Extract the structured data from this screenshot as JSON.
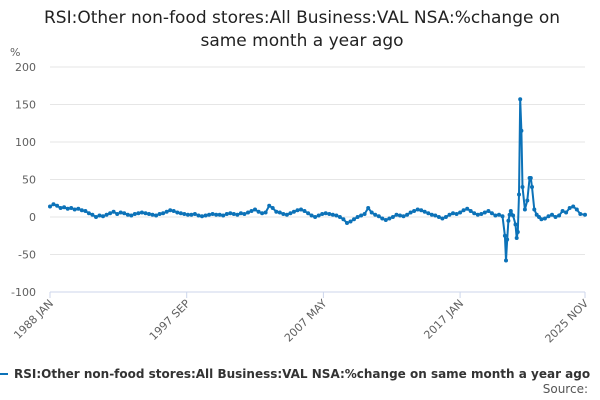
{
  "chart_data": {
    "type": "line",
    "title_lines": [
      "RSI:Other non-food stores:All Business:VAL NSA:%change on",
      "same month a year ago"
    ],
    "ylabel": "%",
    "ylim": [
      -100,
      200
    ],
    "yticks": [
      200,
      150,
      100,
      50,
      0,
      -50,
      -100
    ],
    "xlim": [
      "1988-01",
      "2025-11"
    ],
    "xticks": [
      "1988 JAN",
      "1997 SEP",
      "2007 MAY",
      "2017 JAN",
      "2025 NOV"
    ],
    "grid": true,
    "legend_position": "bottom",
    "source_label": "Source:",
    "accent_color": "#0c72b8",
    "series": [
      {
        "name": "RSI:Other non-food stores:All Business:VAL NSA:%change on same month a year ago",
        "points": [
          [
            "1988-01",
            14
          ],
          [
            "1988-04",
            17
          ],
          [
            "1988-07",
            15
          ],
          [
            "1988-10",
            12
          ],
          [
            "1989-01",
            13
          ],
          [
            "1989-04",
            11
          ],
          [
            "1989-07",
            12
          ],
          [
            "1989-10",
            10
          ],
          [
            "1990-01",
            11
          ],
          [
            "1990-04",
            9
          ],
          [
            "1990-07",
            8
          ],
          [
            "1990-10",
            5
          ],
          [
            "1991-01",
            3
          ],
          [
            "1991-04",
            0
          ],
          [
            "1991-07",
            2
          ],
          [
            "1991-10",
            1
          ],
          [
            "1992-01",
            3
          ],
          [
            "1992-04",
            5
          ],
          [
            "1992-07",
            7
          ],
          [
            "1992-10",
            4
          ],
          [
            "1993-01",
            6
          ],
          [
            "1993-04",
            5
          ],
          [
            "1993-07",
            3
          ],
          [
            "1993-10",
            2
          ],
          [
            "1994-01",
            4
          ],
          [
            "1994-04",
            5
          ],
          [
            "1994-07",
            6
          ],
          [
            "1994-10",
            5
          ],
          [
            "1995-01",
            4
          ],
          [
            "1995-04",
            3
          ],
          [
            "1995-07",
            2
          ],
          [
            "1995-10",
            4
          ],
          [
            "1996-01",
            5
          ],
          [
            "1996-04",
            7
          ],
          [
            "1996-07",
            9
          ],
          [
            "1996-10",
            8
          ],
          [
            "1997-01",
            6
          ],
          [
            "1997-04",
            5
          ],
          [
            "1997-07",
            4
          ],
          [
            "1997-10",
            3
          ],
          [
            "1998-01",
            3
          ],
          [
            "1998-04",
            4
          ],
          [
            "1998-07",
            2
          ],
          [
            "1998-10",
            1
          ],
          [
            "1999-01",
            2
          ],
          [
            "1999-04",
            3
          ],
          [
            "1999-07",
            4
          ],
          [
            "1999-10",
            3
          ],
          [
            "2000-01",
            3
          ],
          [
            "2000-04",
            2
          ],
          [
            "2000-07",
            4
          ],
          [
            "2000-10",
            5
          ],
          [
            "2001-01",
            4
          ],
          [
            "2001-04",
            3
          ],
          [
            "2001-07",
            5
          ],
          [
            "2001-10",
            4
          ],
          [
            "2002-01",
            6
          ],
          [
            "2002-04",
            8
          ],
          [
            "2002-07",
            10
          ],
          [
            "2002-10",
            7
          ],
          [
            "2003-01",
            5
          ],
          [
            "2003-04",
            6
          ],
          [
            "2003-07",
            15
          ],
          [
            "2003-10",
            12
          ],
          [
            "2004-01",
            7
          ],
          [
            "2004-04",
            6
          ],
          [
            "2004-07",
            4
          ],
          [
            "2004-10",
            3
          ],
          [
            "2005-01",
            5
          ],
          [
            "2005-04",
            7
          ],
          [
            "2005-07",
            9
          ],
          [
            "2005-10",
            10
          ],
          [
            "2006-01",
            8
          ],
          [
            "2006-04",
            5
          ],
          [
            "2006-07",
            2
          ],
          [
            "2006-10",
            0
          ],
          [
            "2007-01",
            2
          ],
          [
            "2007-04",
            4
          ],
          [
            "2007-07",
            5
          ],
          [
            "2007-10",
            4
          ],
          [
            "2008-01",
            3
          ],
          [
            "2008-04",
            2
          ],
          [
            "2008-07",
            0
          ],
          [
            "2008-10",
            -3
          ],
          [
            "2009-01",
            -8
          ],
          [
            "2009-04",
            -6
          ],
          [
            "2009-07",
            -3
          ],
          [
            "2009-10",
            0
          ],
          [
            "2010-01",
            2
          ],
          [
            "2010-04",
            4
          ],
          [
            "2010-07",
            12
          ],
          [
            "2010-10",
            6
          ],
          [
            "2011-01",
            3
          ],
          [
            "2011-04",
            1
          ],
          [
            "2011-07",
            -2
          ],
          [
            "2011-10",
            -4
          ],
          [
            "2012-01",
            -2
          ],
          [
            "2012-04",
            0
          ],
          [
            "2012-07",
            3
          ],
          [
            "2012-10",
            2
          ],
          [
            "2013-01",
            1
          ],
          [
            "2013-04",
            3
          ],
          [
            "2013-07",
            6
          ],
          [
            "2013-10",
            8
          ],
          [
            "2014-01",
            10
          ],
          [
            "2014-04",
            9
          ],
          [
            "2014-07",
            7
          ],
          [
            "2014-10",
            5
          ],
          [
            "2015-01",
            3
          ],
          [
            "2015-04",
            2
          ],
          [
            "2015-07",
            0
          ],
          [
            "2015-10",
            -2
          ],
          [
            "2016-01",
            0
          ],
          [
            "2016-04",
            3
          ],
          [
            "2016-07",
            5
          ],
          [
            "2016-10",
            4
          ],
          [
            "2017-01",
            6
          ],
          [
            "2017-04",
            9
          ],
          [
            "2017-07",
            11
          ],
          [
            "2017-10",
            8
          ],
          [
            "2018-01",
            5
          ],
          [
            "2018-04",
            3
          ],
          [
            "2018-07",
            4
          ],
          [
            "2018-10",
            6
          ],
          [
            "2019-01",
            8
          ],
          [
            "2019-04",
            5
          ],
          [
            "2019-07",
            2
          ],
          [
            "2019-10",
            3
          ],
          [
            "2020-01",
            1
          ],
          [
            "2020-03",
            -25
          ],
          [
            "2020-04",
            -58
          ],
          [
            "2020-05",
            -30
          ],
          [
            "2020-06",
            -5
          ],
          [
            "2020-07",
            3
          ],
          [
            "2020-08",
            8
          ],
          [
            "2020-10",
            2
          ],
          [
            "2020-12",
            -10
          ],
          [
            "2021-01",
            -28
          ],
          [
            "2021-02",
            -20
          ],
          [
            "2021-03",
            30
          ],
          [
            "2021-04",
            157
          ],
          [
            "2021-05",
            115
          ],
          [
            "2021-06",
            40
          ],
          [
            "2021-08",
            10
          ],
          [
            "2021-10",
            22
          ],
          [
            "2021-12",
            52
          ],
          [
            "2022-01",
            52
          ],
          [
            "2022-02",
            40
          ],
          [
            "2022-04",
            10
          ],
          [
            "2022-06",
            3
          ],
          [
            "2022-08",
            0
          ],
          [
            "2022-10",
            -3
          ],
          [
            "2023-01",
            -2
          ],
          [
            "2023-04",
            1
          ],
          [
            "2023-07",
            3
          ],
          [
            "2023-10",
            0
          ],
          [
            "2024-01",
            2
          ],
          [
            "2024-04",
            8
          ],
          [
            "2024-07",
            6
          ],
          [
            "2024-10",
            12
          ],
          [
            "2025-01",
            14
          ],
          [
            "2025-04",
            10
          ],
          [
            "2025-07",
            4
          ],
          [
            "2025-11",
            3
          ]
        ]
      }
    ]
  }
}
